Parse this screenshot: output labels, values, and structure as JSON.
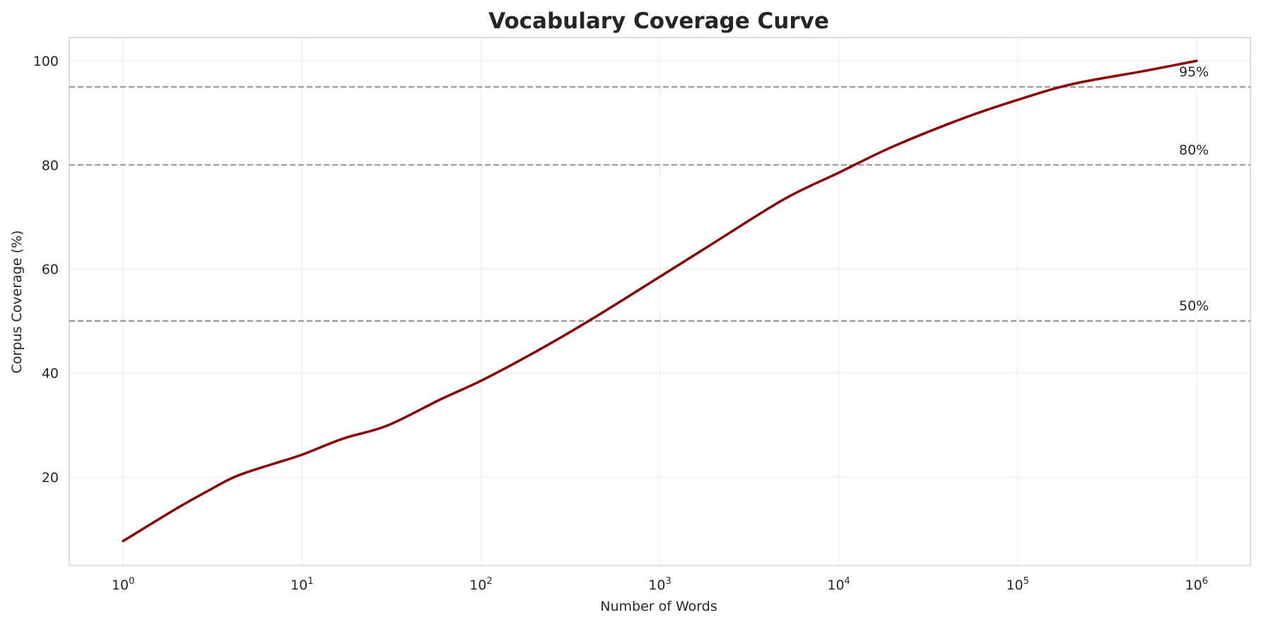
{
  "chart_data": {
    "type": "line",
    "title": "Vocabulary Coverage Curve",
    "xlabel": "Number of Words",
    "ylabel": "Corpus Coverage (%)",
    "x_scale": "log",
    "xlim": [
      0.5,
      2000000
    ],
    "ylim": [
      3,
      104.5
    ],
    "grid": true,
    "x_ticks": [
      {
        "value": 1,
        "base": "10",
        "exp": "0"
      },
      {
        "value": 10,
        "base": "10",
        "exp": "1"
      },
      {
        "value": 100,
        "base": "10",
        "exp": "2"
      },
      {
        "value": 1000,
        "base": "10",
        "exp": "3"
      },
      {
        "value": 10000,
        "base": "10",
        "exp": "4"
      },
      {
        "value": 100000,
        "base": "10",
        "exp": "5"
      },
      {
        "value": 1000000,
        "base": "10",
        "exp": "6"
      }
    ],
    "y_ticks": [
      {
        "value": 20,
        "label": "20"
      },
      {
        "value": 40,
        "label": "40"
      },
      {
        "value": 60,
        "label": "60"
      },
      {
        "value": 80,
        "label": "80"
      },
      {
        "value": 100,
        "label": "100"
      }
    ],
    "series": [
      {
        "color": "#8b0000",
        "x": [
          1,
          2,
          3,
          4,
          5,
          7,
          10,
          17,
          30,
          60,
          100,
          200,
          400,
          1000,
          2000,
          5000,
          10000,
          20000,
          50000,
          100000,
          200000,
          500000,
          1000000
        ],
        "y": [
          7.7,
          14.0,
          17.4,
          19.7,
          21.0,
          22.6,
          24.3,
          27.4,
          29.9,
          35.0,
          38.5,
          44.0,
          50.0,
          58.5,
          65.0,
          73.5,
          78.5,
          83.5,
          89.0,
          92.5,
          95.5,
          98.0,
          100.0
        ]
      }
    ],
    "reference_lines": [
      {
        "y": 95,
        "label": "95%",
        "color": "#999999"
      },
      {
        "y": 80,
        "label": "80%",
        "color": "#999999"
      },
      {
        "y": 50,
        "label": "50%",
        "color": "#999999"
      }
    ]
  }
}
